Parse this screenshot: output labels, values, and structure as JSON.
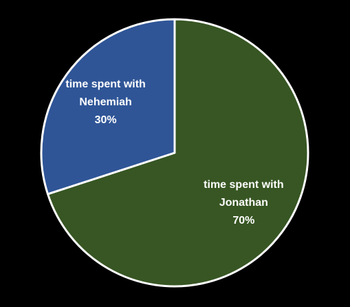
{
  "chart_data": {
    "type": "pie",
    "title": "",
    "slices": [
      {
        "label_lines": [
          "time spent with",
          "Jonathan"
        ],
        "value": 70,
        "value_label": "70%",
        "color": "#375623"
      },
      {
        "label_lines": [
          "time spent with",
          "Nehemiah"
        ],
        "value": 30,
        "value_label": "30%",
        "color": "#2F5597"
      }
    ],
    "start": "12 o'clock",
    "direction": "clockwise",
    "slice_border_color": "#FFFFFF",
    "background_color": "#000000",
    "legend": "none"
  }
}
